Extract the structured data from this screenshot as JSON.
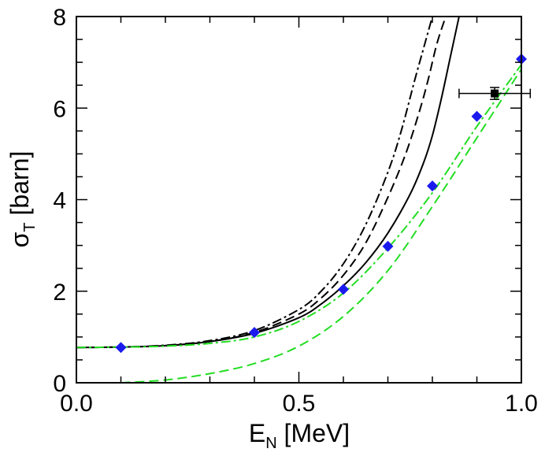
{
  "chart_data": {
    "type": "line",
    "title": "",
    "xlabel": {
      "main": "E",
      "sub": "N",
      "unit": " [MeV]"
    },
    "ylabel": {
      "main": "σ",
      "sub": "T",
      "unit": " [barn]"
    },
    "xlim": [
      0.0,
      1.0
    ],
    "ylim": [
      0,
      8
    ],
    "x_ticks": [
      "0.0",
      "0.5",
      "1.0"
    ],
    "y_ticks": [
      "0",
      "2",
      "4",
      "6",
      "8"
    ],
    "x_tick_values": [
      0.0,
      0.5,
      1.0
    ],
    "y_tick_values": [
      0,
      2,
      4,
      6,
      8
    ],
    "grid": false,
    "series": [
      {
        "name": "solid-black",
        "style": "solid",
        "color": "#000000",
        "x": [
          0.0,
          0.1,
          0.2,
          0.3,
          0.4,
          0.5,
          0.55,
          0.6,
          0.65,
          0.7,
          0.75,
          0.78,
          0.8,
          0.82,
          0.84,
          0.86
        ],
        "y": [
          0.77,
          0.78,
          0.81,
          0.9,
          1.08,
          1.42,
          1.72,
          2.12,
          2.62,
          3.27,
          4.12,
          4.8,
          5.4,
          6.2,
          7.1,
          8.0
        ]
      },
      {
        "name": "dashed-black",
        "style": "dashed",
        "color": "#000000",
        "x": [
          0.0,
          0.1,
          0.2,
          0.3,
          0.4,
          0.5,
          0.55,
          0.6,
          0.65,
          0.7,
          0.74,
          0.77,
          0.79,
          0.81,
          0.83
        ],
        "y": [
          0.77,
          0.78,
          0.81,
          0.9,
          1.1,
          1.5,
          1.85,
          2.35,
          3.05,
          4.05,
          5.0,
          5.9,
          6.6,
          7.4,
          8.0
        ]
      },
      {
        "name": "dash-dot-black",
        "style": "dashdot",
        "color": "#000000",
        "x": [
          0.0,
          0.1,
          0.2,
          0.3,
          0.4,
          0.5,
          0.55,
          0.6,
          0.65,
          0.7,
          0.73,
          0.76,
          0.78,
          0.8
        ],
        "y": [
          0.77,
          0.78,
          0.82,
          0.92,
          1.14,
          1.6,
          2.0,
          2.6,
          3.45,
          4.6,
          5.5,
          6.6,
          7.3,
          8.0
        ]
      },
      {
        "name": "dash-dot-green",
        "style": "dashdot",
        "color": "#22dd22",
        "x": [
          0.0,
          0.1,
          0.2,
          0.3,
          0.4,
          0.5,
          0.6,
          0.7,
          0.8,
          0.9,
          1.0
        ],
        "y": [
          0.77,
          0.78,
          0.8,
          0.86,
          1.0,
          1.34,
          1.96,
          2.94,
          4.15,
          5.6,
          6.95
        ]
      },
      {
        "name": "dashed-green",
        "style": "dashed",
        "color": "#22dd22",
        "x": [
          0.1,
          0.2,
          0.3,
          0.4,
          0.5,
          0.6,
          0.7,
          0.8,
          0.9,
          1.0
        ],
        "y": [
          0.0,
          0.06,
          0.2,
          0.42,
          0.8,
          1.45,
          2.45,
          3.85,
          5.35,
          6.85
        ]
      },
      {
        "name": "blue-diamonds",
        "style": "marker",
        "marker": "diamond",
        "color": "#1a1aee",
        "x": [
          0.1,
          0.4,
          0.6,
          0.7,
          0.8,
          0.9,
          1.0
        ],
        "y": [
          0.77,
          1.1,
          2.04,
          2.98,
          4.3,
          5.82,
          7.07
        ]
      },
      {
        "name": "experiment",
        "style": "marker",
        "marker": "square",
        "color": "#000000",
        "x": [
          0.94
        ],
        "y": [
          6.32
        ],
        "xerr": [
          0.08
        ],
        "yerr": [
          0.13
        ]
      }
    ]
  }
}
